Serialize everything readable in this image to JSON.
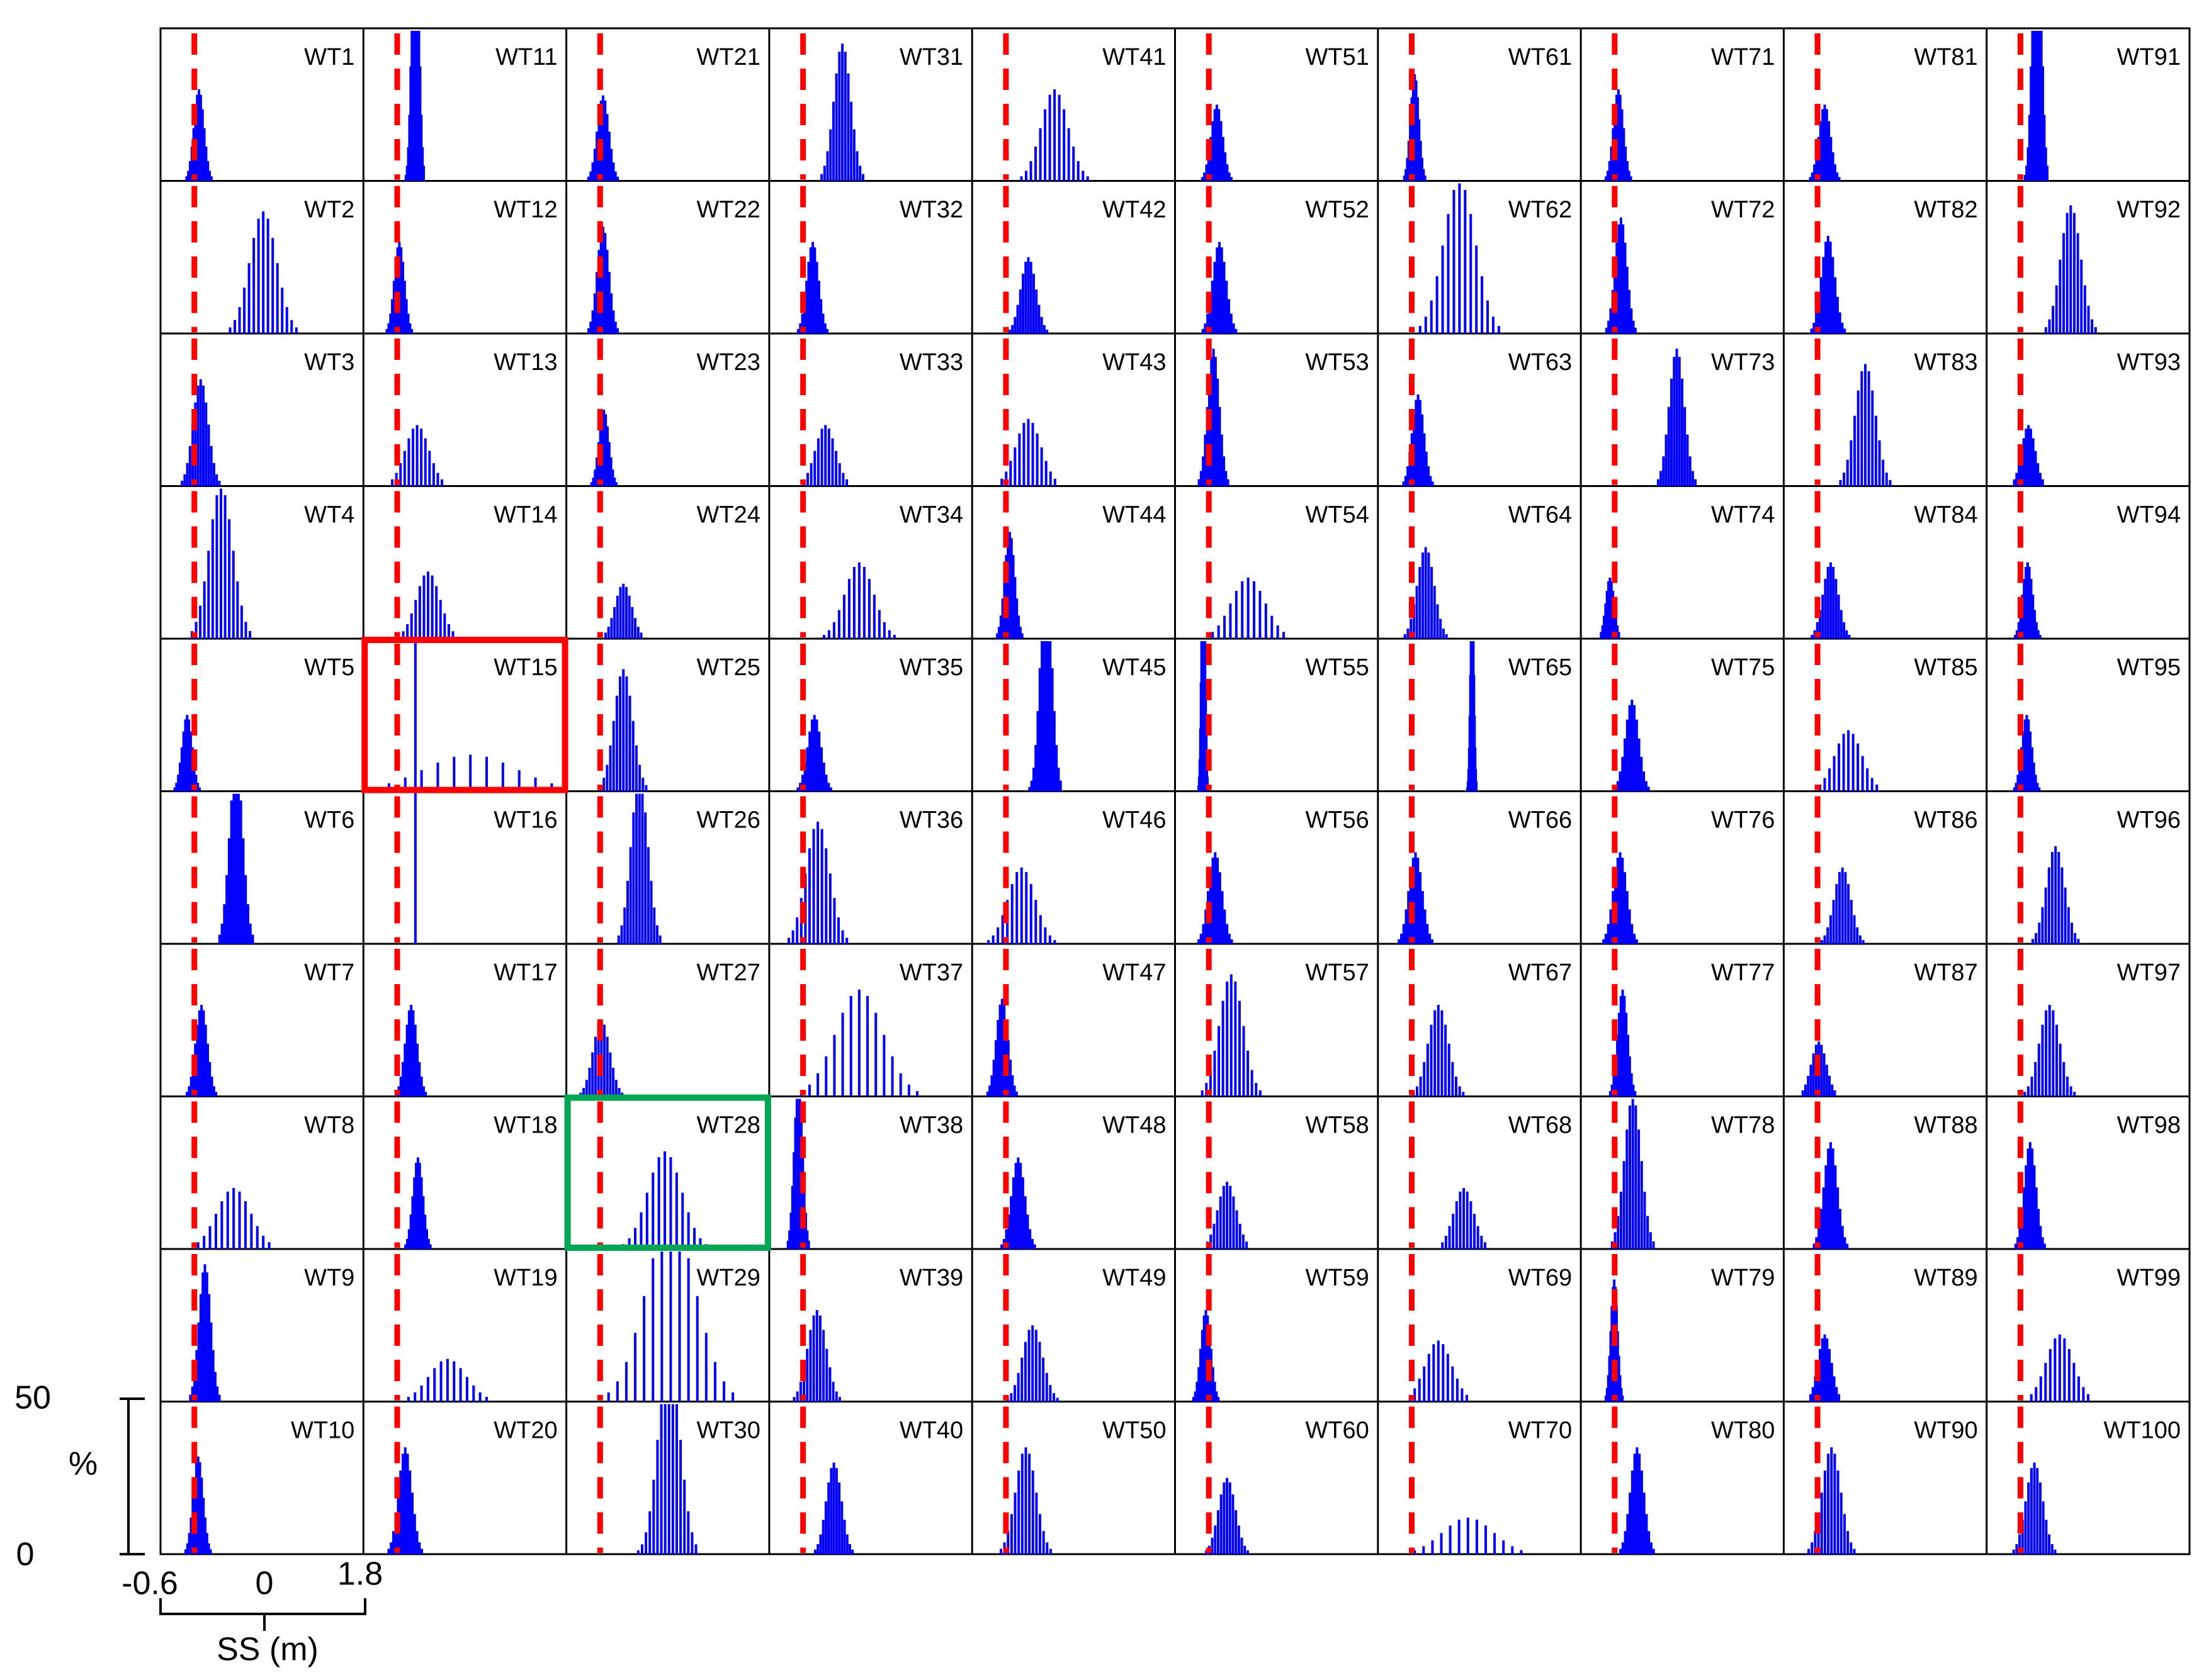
{
  "chart_data": {
    "type": "bar",
    "layout": "small-multiples 10x10 histogram grid",
    "panel_labels": [
      "WT1",
      "WT11",
      "WT21",
      "WT31",
      "WT41",
      "WT51",
      "WT61",
      "WT71",
      "WT81",
      "WT91",
      "WT2",
      "WT12",
      "WT22",
      "WT32",
      "WT42",
      "WT52",
      "WT62",
      "WT72",
      "WT82",
      "WT92",
      "WT3",
      "WT13",
      "WT23",
      "WT33",
      "WT43",
      "WT53",
      "WT63",
      "WT73",
      "WT83",
      "WT93",
      "WT4",
      "WT14",
      "WT24",
      "WT34",
      "WT44",
      "WT54",
      "WT64",
      "WT74",
      "WT84",
      "WT94",
      "WT5",
      "WT15",
      "WT25",
      "WT35",
      "WT45",
      "WT55",
      "WT65",
      "WT75",
      "WT85",
      "WT95",
      "WT6",
      "WT16",
      "WT26",
      "WT36",
      "WT46",
      "WT56",
      "WT66",
      "WT76",
      "WT86",
      "WT96",
      "WT7",
      "WT17",
      "WT27",
      "WT37",
      "WT47",
      "WT57",
      "WT67",
      "WT77",
      "WT87",
      "WT97",
      "WT8",
      "WT18",
      "WT28",
      "WT38",
      "WT48",
      "WT58",
      "WT68",
      "WT78",
      "WT88",
      "WT98",
      "WT9",
      "WT19",
      "WT29",
      "WT39",
      "WT49",
      "WT59",
      "WT69",
      "WT79",
      "WT89",
      "WT99",
      "WT10",
      "WT20",
      "WT30",
      "WT40",
      "WT50",
      "WT60",
      "WT70",
      "WT80",
      "WT90",
      "WT100"
    ],
    "x_axis": {
      "label": "SS (m)",
      "ticks": [
        "-0.6",
        "0",
        "1.8"
      ],
      "range": [
        -0.6,
        1.8
      ]
    },
    "y_axis": {
      "label": "%",
      "ticks": [
        "0",
        "50"
      ],
      "range": [
        0,
        50
      ]
    },
    "reference_line": {
      "x": -0.2,
      "style": "dashed",
      "color": "#ff0000"
    },
    "bar_color": "#0000ff",
    "highlighted_panels": [
      {
        "label": "WT15",
        "color": "#ff0000"
      },
      {
        "label": "WT28",
        "color": "#00a651"
      }
    ],
    "distribution_profiles": [
      [
        -0.16,
        0.06,
        30
      ],
      [
        0.0,
        0.04,
        100
      ],
      [
        -0.18,
        0.07,
        28
      ],
      [
        0.25,
        0.1,
        45
      ],
      [
        0.36,
        0.16,
        30
      ],
      [
        -0.12,
        0.07,
        25
      ],
      [
        -0.18,
        0.05,
        35
      ],
      [
        -0.17,
        0.06,
        30
      ],
      [
        -0.13,
        0.07,
        25
      ],
      [
        -0.02,
        0.05,
        100
      ],
      [
        0.6,
        0.16,
        40
      ],
      [
        -0.19,
        0.06,
        30
      ],
      [
        -0.18,
        0.07,
        35
      ],
      [
        -0.1,
        0.07,
        30
      ],
      [
        0.05,
        0.09,
        25
      ],
      [
        -0.09,
        0.08,
        30
      ],
      [
        0.35,
        0.19,
        50
      ],
      [
        -0.14,
        0.07,
        38
      ],
      [
        -0.09,
        0.08,
        32
      ],
      [
        0.38,
        0.12,
        42
      ],
      [
        -0.14,
        0.09,
        35
      ],
      [
        0.02,
        0.14,
        20
      ],
      [
        -0.17,
        0.06,
        25
      ],
      [
        0.05,
        0.12,
        20
      ],
      [
        0.05,
        0.15,
        22
      ],
      [
        -0.16,
        0.07,
        45
      ],
      [
        -0.14,
        0.07,
        30
      ],
      [
        0.52,
        0.09,
        45
      ],
      [
        0.35,
        0.12,
        40
      ],
      [
        -0.12,
        0.08,
        20
      ],
      [
        0.1,
        0.14,
        50
      ],
      [
        0.15,
        0.14,
        22
      ],
      [
        0.06,
        0.1,
        18
      ],
      [
        0.45,
        0.17,
        25
      ],
      [
        -0.17,
        0.06,
        35
      ],
      [
        0.25,
        0.2,
        20
      ],
      [
        -0.05,
        0.1,
        30
      ],
      [
        -0.27,
        0.05,
        20
      ],
      [
        -0.06,
        0.09,
        25
      ],
      [
        -0.13,
        0.06,
        25
      ],
      [
        -0.3,
        0.06,
        25
      ],
      [
        0.65,
        0.55,
        12
      ],
      [
        0.06,
        0.11,
        40
      ],
      [
        -0.08,
        0.08,
        25
      ],
      [
        0.26,
        0.07,
        70
      ],
      [
        -0.28,
        0.02,
        95
      ],
      [
        0.5,
        0.02,
        66
      ],
      [
        -0.01,
        0.08,
        30
      ],
      [
        0.15,
        0.16,
        20
      ],
      [
        -0.14,
        0.06,
        25
      ],
      [
        0.28,
        0.08,
        60
      ],
      [
        0.0,
        0.0,
        100
      ],
      [
        0.25,
        0.1,
        55
      ],
      [
        -0.04,
        0.14,
        40
      ],
      [
        -0.03,
        0.16,
        25
      ],
      [
        -0.14,
        0.08,
        30
      ],
      [
        -0.17,
        0.08,
        30
      ],
      [
        -0.15,
        0.08,
        30
      ],
      [
        0.08,
        0.1,
        25
      ],
      [
        0.2,
        0.11,
        32
      ],
      [
        -0.13,
        0.07,
        30
      ],
      [
        -0.05,
        0.07,
        30
      ],
      [
        -0.2,
        0.1,
        25
      ],
      [
        0.45,
        0.28,
        35
      ],
      [
        -0.26,
        0.07,
        32
      ],
      [
        0.05,
        0.14,
        40
      ],
      [
        0.1,
        0.12,
        30
      ],
      [
        -0.12,
        0.06,
        35
      ],
      [
        -0.2,
        0.09,
        18
      ],
      [
        0.13,
        0.12,
        30
      ],
      [
        0.25,
        0.2,
        20
      ],
      [
        0.03,
        0.06,
        30
      ],
      [
        0.55,
        0.2,
        32
      ],
      [
        -0.27,
        0.05,
        55
      ],
      [
        -0.07,
        0.08,
        30
      ],
      [
        0.0,
        0.11,
        22
      ],
      [
        0.4,
        0.12,
        20
      ],
      [
        0.0,
        0.1,
        50
      ],
      [
        -0.06,
        0.08,
        35
      ],
      [
        -0.1,
        0.07,
        35
      ],
      [
        -0.09,
        0.07,
        45
      ],
      [
        0.38,
        0.22,
        14
      ],
      [
        0.62,
        0.3,
        60
      ],
      [
        -0.05,
        0.11,
        30
      ],
      [
        0.1,
        0.12,
        25
      ],
      [
        -0.25,
        0.06,
        30
      ],
      [
        0.1,
        0.16,
        20
      ],
      [
        -0.22,
        0.04,
        40
      ],
      [
        -0.13,
        0.08,
        22
      ],
      [
        0.25,
        0.16,
        22
      ],
      [
        -0.17,
        0.06,
        32
      ],
      [
        -0.12,
        0.08,
        35
      ],
      [
        0.6,
        0.13,
        65
      ],
      [
        0.15,
        0.09,
        30
      ],
      [
        0.02,
        0.12,
        35
      ],
      [
        0.0,
        0.1,
        25
      ],
      [
        0.45,
        0.3,
        12
      ],
      [
        0.05,
        0.08,
        35
      ],
      [
        -0.05,
        0.11,
        35
      ],
      [
        -0.05,
        0.1,
        30
      ]
    ]
  },
  "colors": {
    "frame": "#000000",
    "bars": "#0000ff",
    "median_line": "#ff0000",
    "highlight_wt15": "#ff0000",
    "highlight_wt28": "#00a651"
  }
}
